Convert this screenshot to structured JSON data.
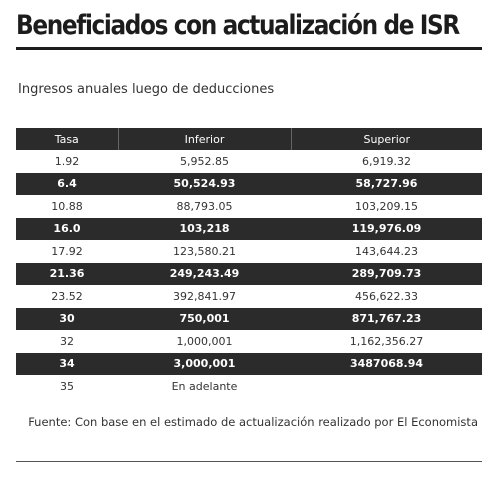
{
  "title": "Beneficiados con actualización de ISR",
  "subtitle": "Ingresos anuales luego de deducciones",
  "table": {
    "headers": [
      "Tasa",
      "Inferior",
      "Superior"
    ],
    "rows": [
      {
        "tasa": "1.92",
        "inferior": "5,952.85",
        "superior": "6,919.32"
      },
      {
        "tasa": "6.4",
        "inferior": "50,524.93",
        "superior": "58,727.96"
      },
      {
        "tasa": "10.88",
        "inferior": "88,793.05",
        "superior": "103,209.15"
      },
      {
        "tasa": "16.0",
        "inferior": "103,218",
        "superior": "119,976.09"
      },
      {
        "tasa": "17.92",
        "inferior": "123,580.21",
        "superior": "143,644.23"
      },
      {
        "tasa": "21.36",
        "inferior": "249,243.49",
        "superior": "289,709.73"
      },
      {
        "tasa": "23.52",
        "inferior": "392,841.97",
        "superior": "456,622.33"
      },
      {
        "tasa": "30",
        "inferior": "750,001",
        "superior": "871,767.23"
      },
      {
        "tasa": "32",
        "inferior": "1,000,001",
        "superior": "1,162,356.27"
      },
      {
        "tasa": "34",
        "inferior": "3,000,001",
        "superior": "3487068.94"
      },
      {
        "tasa": "35",
        "inferior": "En adelante",
        "superior": ""
      }
    ]
  },
  "source": "Fuente: Con base en el estimado de actualización realizado por El Economista",
  "colors": {
    "dark_row": "#2b2b2b",
    "dark_text": "#ffffff",
    "light_text": "#333333"
  }
}
